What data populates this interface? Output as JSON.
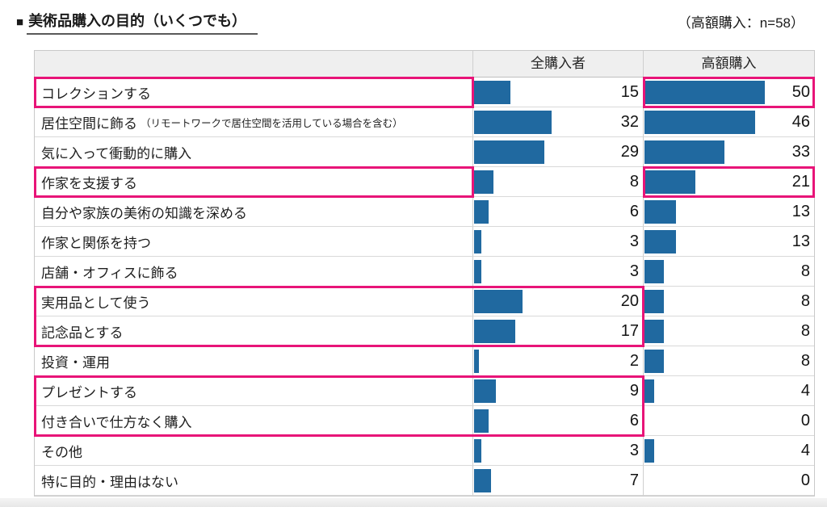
{
  "header": {
    "bullet": "■",
    "title": "美術品購入の目的（いくつでも）",
    "note": "（高額購入：n=58）"
  },
  "colors": {
    "bar_blue": "#2069A0",
    "highlight_pink": "#E81478",
    "header_bg": "#EFEFEF",
    "grid_border": "#CFCFCF"
  },
  "chart_data": {
    "type": "bar",
    "title": "美術品購入の目的（いくつでも）",
    "subtitle": "（高額購入：n=58）",
    "columns": [
      "全購入者",
      "高額購入"
    ],
    "xlabel": "",
    "ylabel": "",
    "xlim": [
      0,
      70
    ],
    "grid": false,
    "legend_position": "table-header",
    "categories": [
      "コレクションする",
      "居住空間に飾る",
      "気に入って衝動的に購入",
      "作家を支援する",
      "自分や家族の美術の知識を深める",
      "作家と関係を持つ",
      "店舗・オフィスに飾る",
      "実用品として使う",
      "記念品とする",
      "投資・運用",
      "プレゼントする",
      "付き合いで仕方なく購入",
      "その他",
      "特に目的・理由はない"
    ],
    "series": [
      {
        "name": "全購入者",
        "values": [
          15,
          32,
          29,
          8,
          6,
          3,
          3,
          20,
          17,
          2,
          9,
          6,
          3,
          7
        ]
      },
      {
        "name": "高額購入",
        "values": [
          50,
          46,
          33,
          21,
          13,
          13,
          8,
          8,
          8,
          8,
          4,
          0,
          4,
          0
        ]
      }
    ],
    "rows": [
      {
        "label": "コレクションする",
        "note": "",
        "values": [
          15,
          50
        ]
      },
      {
        "label": "居住空間に飾る",
        "note": "（リモートワークで居住空間を活用している場合を含む）",
        "values": [
          32,
          46
        ]
      },
      {
        "label": "気に入って衝動的に購入",
        "note": "",
        "values": [
          29,
          33
        ]
      },
      {
        "label": "作家を支援する",
        "note": "",
        "values": [
          8,
          21
        ]
      },
      {
        "label": "自分や家族の美術の知識を深める",
        "note": "",
        "values": [
          6,
          13
        ]
      },
      {
        "label": "作家と関係を持つ",
        "note": "",
        "values": [
          3,
          13
        ]
      },
      {
        "label": "店舗・オフィスに飾る",
        "note": "",
        "values": [
          3,
          8
        ]
      },
      {
        "label": "実用品として使う",
        "note": "",
        "values": [
          20,
          8
        ]
      },
      {
        "label": "記念品とする",
        "note": "",
        "values": [
          17,
          8
        ]
      },
      {
        "label": "投資・運用",
        "note": "",
        "values": [
          2,
          8
        ]
      },
      {
        "label": "プレゼントする",
        "note": "",
        "values": [
          9,
          4
        ]
      },
      {
        "label": "付き合いで仕方なく購入",
        "note": "",
        "values": [
          6,
          0
        ]
      },
      {
        "label": "その他",
        "note": "",
        "values": [
          3,
          4
        ]
      },
      {
        "label": "特に目的・理由はない",
        "note": "",
        "values": [
          7,
          0
        ]
      }
    ],
    "highlights": [
      {
        "rows": [
          0,
          0
        ],
        "span": "label"
      },
      {
        "rows": [
          0,
          0
        ],
        "span": "high_value"
      },
      {
        "rows": [
          3,
          3
        ],
        "span": "label"
      },
      {
        "rows": [
          3,
          3
        ],
        "span": "high_value"
      },
      {
        "rows": [
          7,
          8
        ],
        "span": "label_and_all_buyers"
      },
      {
        "rows": [
          10,
          11
        ],
        "span": "label_and_all_buyers"
      }
    ]
  }
}
